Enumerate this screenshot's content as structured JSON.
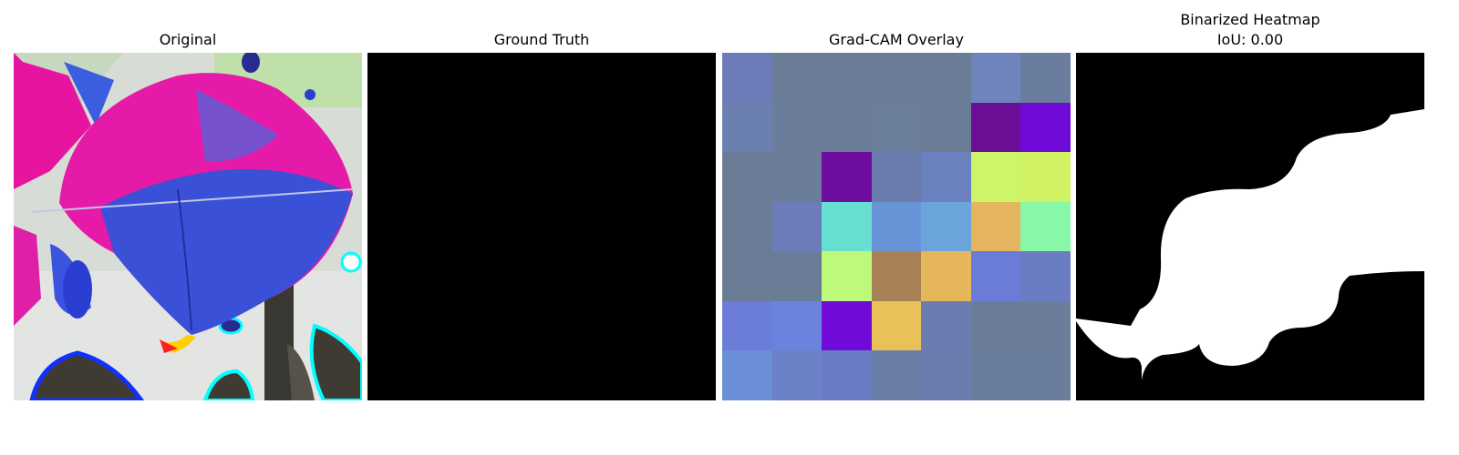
{
  "panels": [
    {
      "title": "Original"
    },
    {
      "title": "Ground Truth"
    },
    {
      "title": "Grad-CAM Overlay"
    },
    {
      "title": "Binarized Heatmap",
      "subtitle": "IoU: 0.00"
    }
  ],
  "gradcam": {
    "colors": [
      [
        "#6b7cb8",
        "#6b7d96",
        "#6b7d96",
        "#6b7d96",
        "#6b7d96",
        "#6f83bd",
        "#6b7d9e"
      ],
      [
        "#6b80ae",
        "#6b7d9a",
        "#6b7d96",
        "#6b7e9a",
        "#6b7d96",
        "#6c0e96",
        "#6f0ad9"
      ],
      [
        "#6b7d96",
        "#6b7d9a",
        "#6f0da3",
        "#6b7cae",
        "#6b80be",
        "#ccf56a",
        "#d0f263"
      ],
      [
        "#6b7d96",
        "#6b7cb8",
        "#67e0d2",
        "#6893d7",
        "#6aa4da",
        "#e5b45e",
        "#88f7a8"
      ],
      [
        "#6b7d96",
        "#6b7d96",
        "#bdf97a",
        "#a98156",
        "#e6b75a",
        "#6b7cd6",
        "#6b7dc2"
      ],
      [
        "#6b7cd9",
        "#6b83dc",
        "#6f0ad9",
        "#e8c158",
        "#6b7db0",
        "#6b7d96",
        "#6b7d9a"
      ],
      [
        "#6b8fd6",
        "#6b80c6",
        "#6b7cc6",
        "#6b7ea6",
        "#6b7dac",
        "#6b7d9c",
        "#6b7d9c"
      ]
    ]
  }
}
